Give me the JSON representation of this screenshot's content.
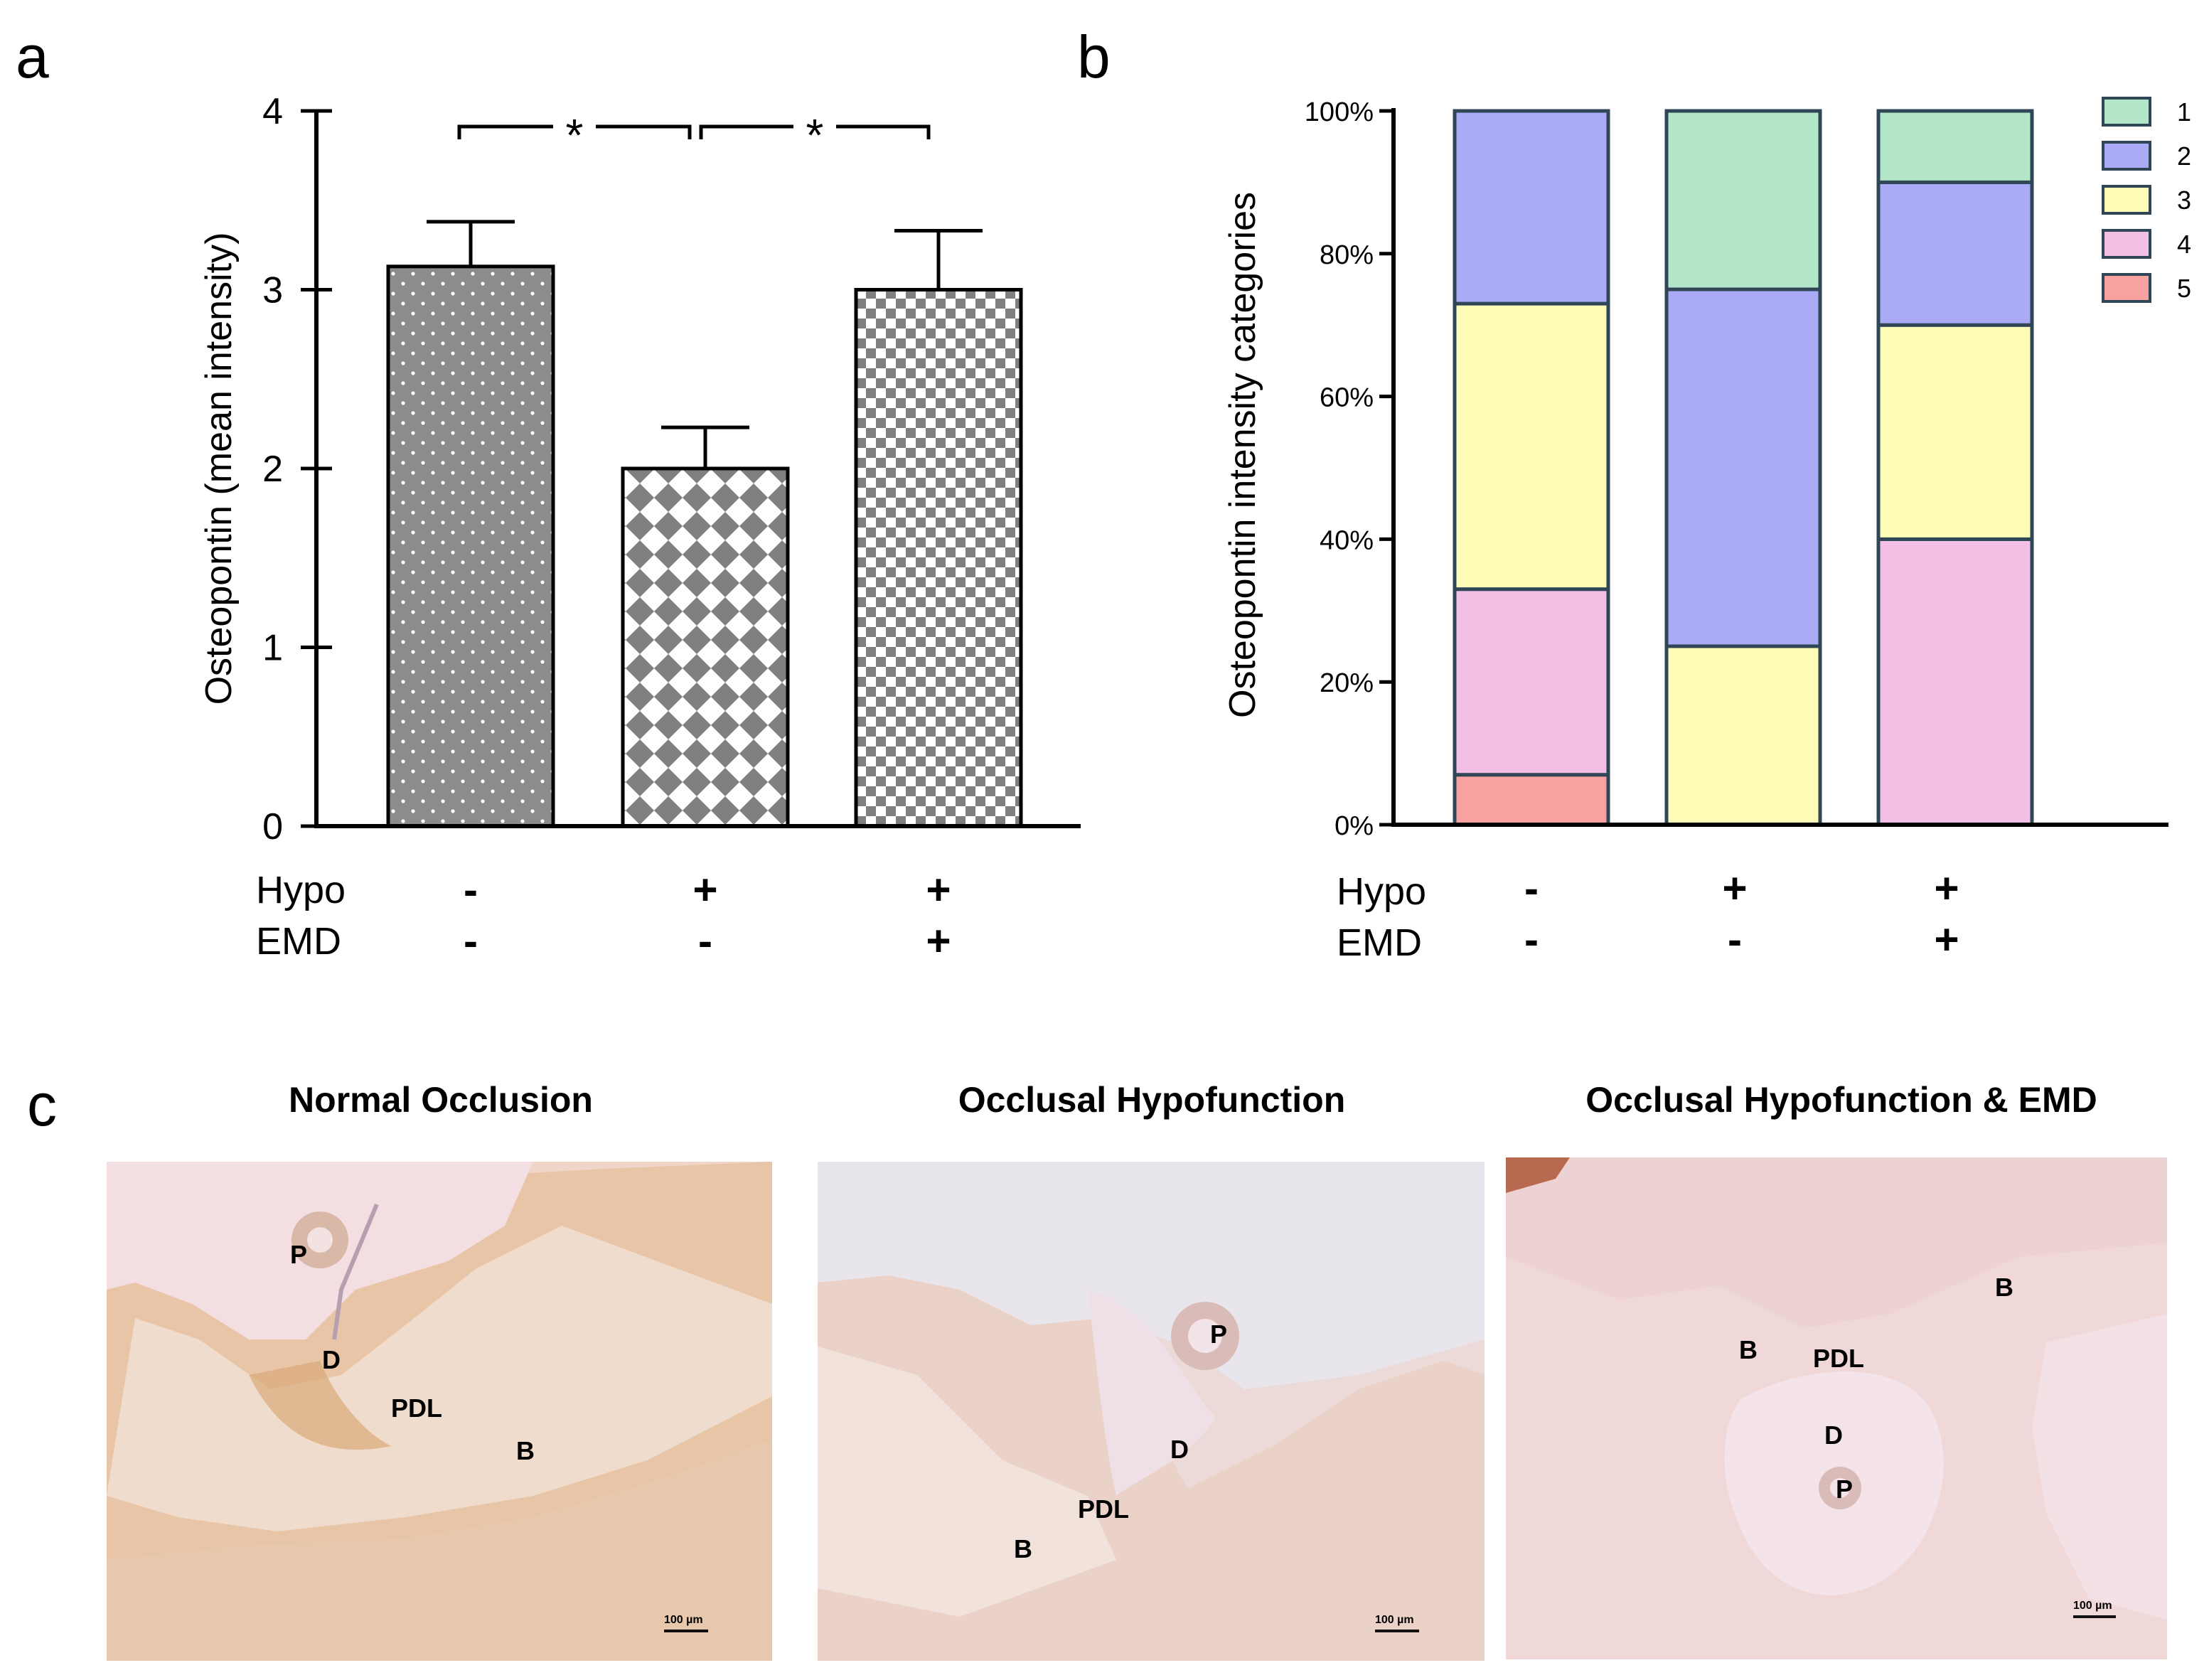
{
  "panels": {
    "a": "a",
    "b": "b",
    "c": "c"
  },
  "chart_data": [
    {
      "type": "bar",
      "panel": "a",
      "ylabel": "Osteopontin (mean intensity)",
      "ylim": [
        0,
        4
      ],
      "yticks": [
        "0",
        "1",
        "2",
        "3",
        "4"
      ],
      "bars": [
        {
          "value": 3.13,
          "error": 0.25,
          "pattern": "dots"
        },
        {
          "value": 2.0,
          "error": 0.23,
          "pattern": "diamonds"
        },
        {
          "value": 3.0,
          "error": 0.33,
          "pattern": "checker"
        }
      ],
      "conditions": {
        "labels": [
          "Hypo",
          "EMD"
        ],
        "rows": [
          [
            "-",
            "+",
            "+"
          ],
          [
            "-",
            "-",
            "+"
          ]
        ]
      },
      "significance": [
        "*",
        "*"
      ],
      "colors": {
        "bar_fill": "#8c8c8c",
        "pattern_light": "#ffffff"
      }
    },
    {
      "type": "bar",
      "stacked": true,
      "panel": "b",
      "ylabel": "Osteopontin intensity categories",
      "ylim": [
        0,
        100
      ],
      "yticks": [
        "0%",
        "20%",
        "40%",
        "60%",
        "80%",
        "100%"
      ],
      "series": [
        {
          "name": "1",
          "color": "#b3e6c8",
          "values": [
            0,
            25,
            10
          ]
        },
        {
          "name": "2",
          "color": "#aaaaf7",
          "values": [
            27,
            50,
            20
          ]
        },
        {
          "name": "3",
          "color": "#fdfdb8",
          "values": [
            40,
            25,
            30
          ]
        },
        {
          "name": "4",
          "color": "#f3bfe4",
          "values": [
            26,
            0,
            40
          ]
        },
        {
          "name": "5",
          "color": "#f7a1a1",
          "values": [
            7,
            0,
            0
          ]
        }
      ],
      "conditions": {
        "labels": [
          "Hypo",
          "EMD"
        ],
        "rows": [
          [
            "-",
            "+",
            "+"
          ],
          [
            "-",
            "-",
            "+"
          ]
        ]
      }
    }
  ],
  "micrographs": [
    {
      "title": "Normal Occlusion",
      "scale": "100 µm",
      "labels": [
        {
          "text": "P"
        },
        {
          "text": "D"
        },
        {
          "text": "PDL"
        },
        {
          "text": "B"
        }
      ]
    },
    {
      "title": "Occlusal Hypofunction",
      "scale": "100 µm",
      "labels": [
        {
          "text": "P"
        },
        {
          "text": "D"
        },
        {
          "text": "PDL"
        },
        {
          "text": "B"
        }
      ]
    },
    {
      "title": "Occlusal Hypofunction & EMD",
      "scale": "100 µm",
      "labels": [
        {
          "text": "B"
        },
        {
          "text": "B"
        },
        {
          "text": "PDL"
        },
        {
          "text": "D"
        },
        {
          "text": "P"
        }
      ]
    }
  ]
}
